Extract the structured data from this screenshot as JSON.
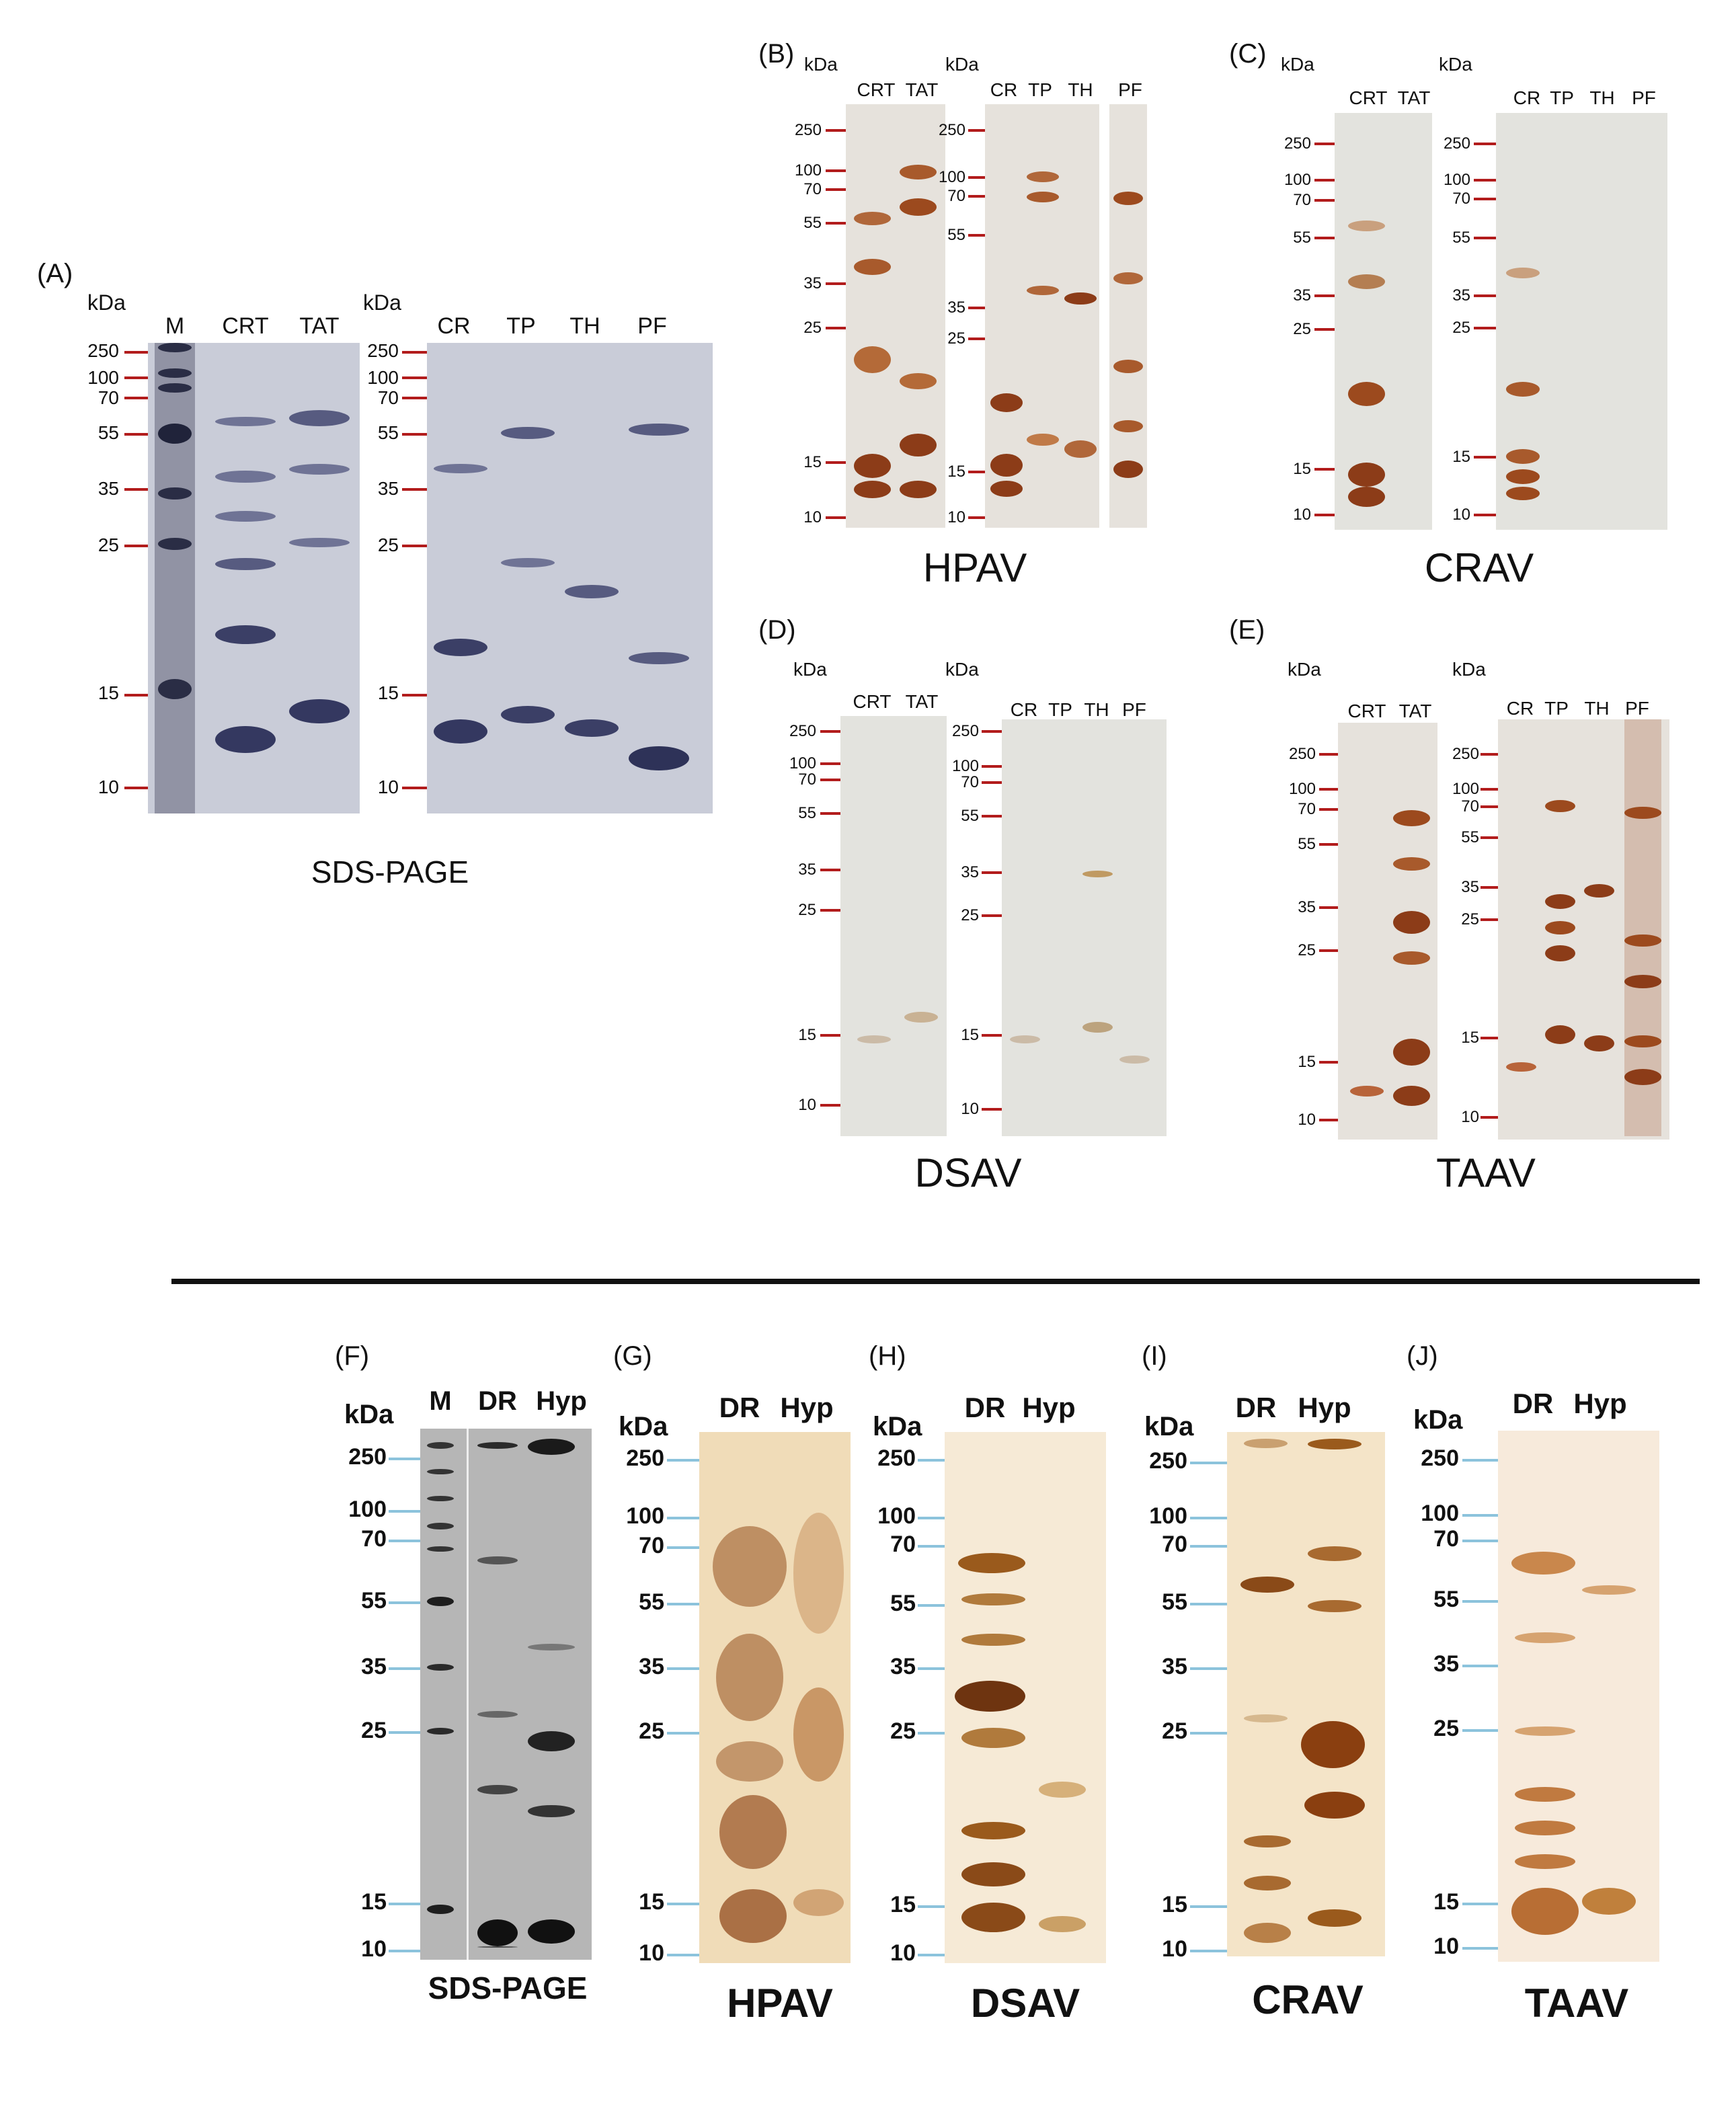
{
  "top": {
    "A": {
      "label": "(A)",
      "kda": "kDa",
      "caption": "SDS-PAGE",
      "left_lanes": [
        "M",
        "CRT",
        "TAT"
      ],
      "right_lanes": [
        "CR",
        "TP",
        "TH",
        "PF"
      ]
    },
    "B": {
      "label": "(B)",
      "kda": "kDa",
      "caption": "HPAV",
      "left_lanes": [
        "CRT",
        "TAT"
      ],
      "right_lanes": [
        "CR",
        "TP",
        "TH",
        "PF"
      ]
    },
    "C": {
      "label": "(C)",
      "kda": "kDa",
      "caption": "CRAV",
      "left_lanes": [
        "CRT",
        "TAT"
      ],
      "right_lanes": [
        "CR",
        "TP",
        "TH",
        "PF"
      ]
    },
    "D": {
      "label": "(D)",
      "kda": "kDa",
      "caption": "DSAV",
      "left_lanes": [
        "CRT",
        "TAT"
      ],
      "right_lanes": [
        "CR",
        "TP",
        "TH",
        "PF"
      ]
    },
    "E": {
      "label": "(E)",
      "kda": "kDa",
      "caption": "TAAV",
      "left_lanes": [
        "CRT",
        "TAT"
      ],
      "right_lanes": [
        "CR",
        "TP",
        "TH",
        "PF"
      ]
    }
  },
  "bottom": {
    "F": {
      "label": "(F)",
      "kda": "kDa",
      "lanes": [
        "M",
        "DR",
        "Hyp"
      ],
      "caption": "SDS-PAGE"
    },
    "G": {
      "label": "(G)",
      "kda": "kDa",
      "lanes": [
        "DR",
        "Hyp"
      ],
      "caption": "HPAV"
    },
    "H": {
      "label": "(H)",
      "kda": "kDa",
      "lanes": [
        "DR",
        "Hyp"
      ],
      "caption": "DSAV"
    },
    "I": {
      "label": "(I)",
      "kda": "kDa",
      "lanes": [
        "DR",
        "Hyp"
      ],
      "caption": "CRAV"
    },
    "J": {
      "label": "(J)",
      "kda": "kDa",
      "lanes": [
        "DR",
        "Hyp"
      ],
      "caption": "TAAV"
    }
  },
  "markers": {
    "top": [
      "250",
      "100",
      "70",
      "55",
      "35",
      "25",
      "15",
      "10"
    ],
    "bottom": [
      "250",
      "100",
      "70",
      "55",
      "35",
      "25",
      "15",
      "10"
    ]
  },
  "colors": {
    "marker_tick_top": "#b21c1c",
    "marker_tick_bottom": "#8cc3dc",
    "coomassie_bg": "#c9ccd8",
    "coomassie_band": "#3b3f66",
    "silver_bg": "#e6e2dc",
    "silver_band": "#9c4a1e",
    "blank_bg": "#e3e3de",
    "bottom_silver_bg": "#f0dcb8",
    "bottom_silver_band": "#9a5a1c",
    "bottom_sds_bg": "#b6b6b6",
    "bottom_sds_band": "#151515"
  }
}
